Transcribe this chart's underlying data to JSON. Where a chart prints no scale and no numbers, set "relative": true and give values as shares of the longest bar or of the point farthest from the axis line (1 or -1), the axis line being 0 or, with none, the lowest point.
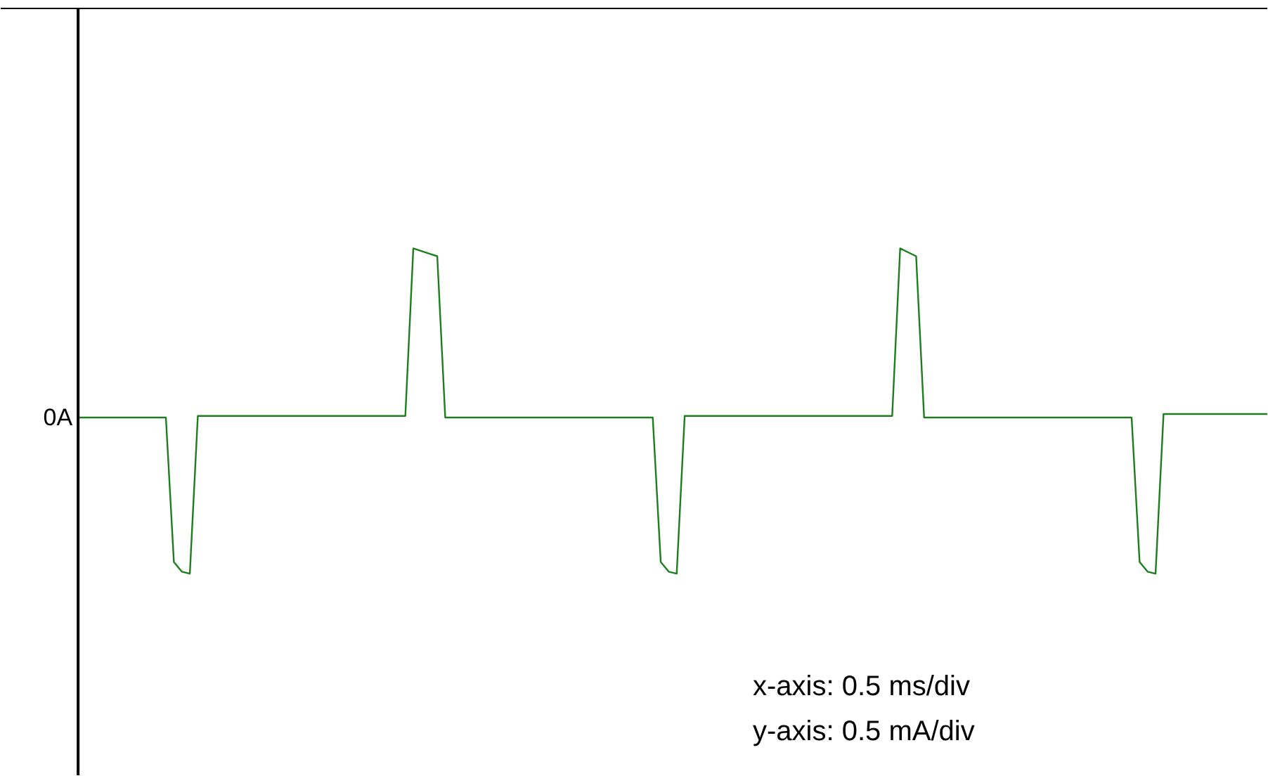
{
  "chart_data": {
    "type": "line",
    "relative": true,
    "categories": [
      null,
      null,
      null,
      null,
      null,
      null,
      null,
      null,
      null,
      null,
      null,
      null,
      null,
      null,
      null,
      null,
      null,
      null,
      null,
      null,
      null,
      null,
      null,
      null,
      null,
      null,
      null,
      null,
      null,
      null,
      null,
      null,
      null,
      null,
      null,
      null,
      null,
      null,
      null,
      null,
      null,
      null,
      null,
      null,
      null,
      null,
      null,
      null,
      null,
      null,
      null,
      null,
      null,
      null,
      null,
      null,
      null,
      null,
      null,
      null,
      null,
      null,
      null,
      null,
      null,
      null,
      null,
      null,
      null,
      null,
      null,
      null,
      null,
      null,
      null,
      null,
      null,
      null,
      null,
      null,
      null,
      null,
      null,
      null,
      null,
      null,
      null,
      null,
      null,
      null,
      null,
      null,
      null,
      null,
      null,
      null,
      null,
      null,
      null,
      null,
      null,
      null,
      null,
      null,
      null,
      null,
      null,
      null,
      null,
      null,
      null,
      null,
      null,
      null,
      null,
      null,
      null,
      null,
      null,
      null,
      null,
      null,
      null,
      null,
      null,
      null,
      null,
      null,
      null,
      null,
      null,
      null,
      null,
      null,
      null,
      null,
      null,
      null,
      null,
      null,
      null,
      null,
      null,
      null,
      null,
      null,
      null,
      null,
      null,
      null
    ],
    "series": [
      {
        "color": "#1e7d1e",
        "values": [
          0.48,
          0.48,
          0.48,
          0.48,
          0.48,
          0.48,
          0.48,
          0.48,
          0.48,
          0.48,
          0.48,
          0.48,
          0.036,
          0.006,
          0,
          0.485,
          0.485,
          0.485,
          0.485,
          0.485,
          0.485,
          0.485,
          0.485,
          0.485,
          0.485,
          0.485,
          0.485,
          0.485,
          0.485,
          0.485,
          0.485,
          0.485,
          0.485,
          0.485,
          0.485,
          0.485,
          0.485,
          0.485,
          0.485,
          0.485,
          0.485,
          0.485,
          1,
          0.992,
          0.984,
          0.976,
          0.48,
          0.48,
          0.48,
          0.48,
          0.48,
          0.48,
          0.48,
          0.48,
          0.48,
          0.48,
          0.48,
          0.48,
          0.48,
          0.48,
          0.48,
          0.48,
          0.48,
          0.48,
          0.48,
          0.48,
          0.48,
          0.48,
          0.48,
          0.48,
          0.48,
          0.48,
          0.48,
          0.036,
          0.006,
          0,
          0.485,
          0.485,
          0.485,
          0.485,
          0.485,
          0.485,
          0.485,
          0.485,
          0.485,
          0.485,
          0.485,
          0.485,
          0.485,
          0.485,
          0.485,
          0.485,
          0.485,
          0.485,
          0.485,
          0.485,
          0.485,
          0.485,
          0.485,
          0.485,
          0.485,
          0.485,
          0.485,
          1,
          0.988,
          0.976,
          0.48,
          0.48,
          0.48,
          0.48,
          0.48,
          0.48,
          0.48,
          0.48,
          0.48,
          0.48,
          0.48,
          0.48,
          0.48,
          0.48,
          0.48,
          0.48,
          0.48,
          0.48,
          0.48,
          0.48,
          0.48,
          0.48,
          0.48,
          0.48,
          0.48,
          0.48,
          0.48,
          0.036,
          0.006,
          0,
          0.491,
          0.491,
          0.491,
          0.491,
          0.491,
          0.491,
          0.491,
          0.491,
          0.491,
          0.491,
          0.491,
          0.491,
          0.491,
          0.491
        ]
      }
    ],
    "tick_labels": false,
    "annotations": [
      "0A",
      "x-axis: 0.5 ms/div",
      "y-axis: 0.5 mA/div"
    ]
  }
}
